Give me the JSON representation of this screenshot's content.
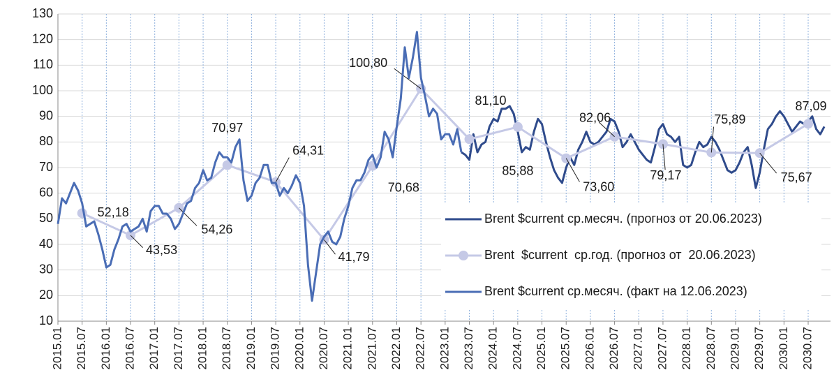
{
  "chart_data": {
    "type": "line",
    "categories": [
      "2015.01",
      null,
      null,
      null,
      null,
      null,
      "2015.07",
      null,
      null,
      null,
      null,
      null,
      "2016.01",
      null,
      null,
      null,
      null,
      null,
      "2016.07",
      null,
      null,
      null,
      null,
      null,
      "2017.01",
      null,
      null,
      null,
      null,
      null,
      "2017.07",
      null,
      null,
      null,
      null,
      null,
      "2018.01",
      null,
      null,
      null,
      null,
      null,
      "2018.07",
      null,
      null,
      null,
      null,
      null,
      "2019.01",
      null,
      null,
      null,
      null,
      null,
      "2019.07",
      null,
      null,
      null,
      null,
      null,
      "2020.01",
      null,
      null,
      null,
      null,
      null,
      "2020.07",
      null,
      null,
      null,
      null,
      null,
      "2021.01",
      null,
      null,
      null,
      null,
      null,
      "2021.07",
      null,
      null,
      null,
      null,
      null,
      "2022.01",
      null,
      null,
      null,
      null,
      null,
      "2022.07",
      null,
      null,
      null,
      null,
      null,
      "2023.01",
      null,
      null,
      null,
      null,
      null,
      "2023.07",
      null,
      null,
      null,
      null,
      null,
      "2024.01",
      null,
      null,
      null,
      null,
      null,
      "2024.07",
      null,
      null,
      null,
      null,
      null,
      "2025.01",
      null,
      null,
      null,
      null,
      null,
      "2025.07",
      null,
      null,
      null,
      null,
      null,
      "2026.01",
      null,
      null,
      null,
      null,
      null,
      "2026.07",
      null,
      null,
      null,
      null,
      null,
      "2027.01",
      null,
      null,
      null,
      null,
      null,
      "2027.07",
      null,
      null,
      null,
      null,
      null,
      "2028.01",
      null,
      null,
      null,
      null,
      null,
      "2028.07",
      null,
      null,
      null,
      null,
      null,
      "2029.01",
      null,
      null,
      null,
      null,
      null,
      "2029.07",
      null,
      null,
      null,
      null,
      null,
      "2030.01",
      null,
      null,
      null,
      null,
      null,
      "2030.07",
      null,
      null,
      null,
      null
    ],
    "series": [
      {
        "name": "Brent $current ср.месяч. (прогноз от 20.06.2023)",
        "color": "#2f4b8c",
        "style": "line",
        "values": [
          null,
          null,
          null,
          null,
          null,
          null,
          null,
          null,
          null,
          null,
          null,
          null,
          null,
          null,
          null,
          null,
          null,
          null,
          null,
          null,
          null,
          null,
          null,
          null,
          null,
          null,
          null,
          null,
          null,
          null,
          null,
          null,
          null,
          null,
          null,
          null,
          null,
          null,
          null,
          null,
          null,
          null,
          null,
          null,
          null,
          null,
          null,
          null,
          null,
          null,
          null,
          null,
          null,
          null,
          null,
          null,
          null,
          null,
          null,
          null,
          null,
          null,
          null,
          null,
          null,
          null,
          null,
          null,
          null,
          null,
          null,
          null,
          null,
          null,
          null,
          null,
          null,
          null,
          null,
          null,
          null,
          null,
          null,
          null,
          null,
          null,
          null,
          null,
          null,
          null,
          null,
          null,
          null,
          null,
          null,
          null,
          null,
          null,
          null,
          null,
          76,
          75,
          73,
          83,
          76,
          79,
          80,
          86,
          89,
          88,
          93,
          93,
          94,
          91,
          84,
          76,
          78,
          77,
          84,
          89,
          87,
          80,
          74,
          69,
          66,
          64,
          70,
          74,
          71,
          77,
          80,
          84,
          80,
          79,
          80,
          82,
          84,
          89,
          88,
          84,
          78,
          80,
          83,
          80,
          77,
          75,
          73,
          72,
          78,
          85,
          87,
          83,
          82,
          80,
          82,
          71,
          70,
          71,
          76,
          80,
          78,
          79,
          82,
          80,
          77,
          73,
          69,
          68,
          69,
          72,
          76,
          78,
          71,
          62,
          68,
          77,
          85,
          87,
          90,
          92,
          90,
          87,
          84,
          86,
          88,
          87,
          88,
          90,
          85,
          83,
          86
        ]
      },
      {
        "name": "Brent  $current  ср.год. (прогноз от  20.06.2023)",
        "color": "#c5c9e6",
        "style": "points",
        "values": [
          null,
          null,
          null,
          null,
          null,
          null,
          52.18,
          null,
          null,
          null,
          null,
          null,
          null,
          null,
          null,
          null,
          null,
          null,
          43.53,
          null,
          null,
          null,
          null,
          null,
          null,
          null,
          null,
          null,
          null,
          null,
          54.26,
          null,
          null,
          null,
          null,
          null,
          null,
          null,
          null,
          null,
          null,
          null,
          70.97,
          null,
          null,
          null,
          null,
          null,
          null,
          null,
          null,
          null,
          null,
          null,
          64.31,
          null,
          null,
          null,
          null,
          null,
          null,
          null,
          null,
          null,
          null,
          null,
          41.79,
          null,
          null,
          null,
          null,
          null,
          null,
          null,
          null,
          null,
          null,
          null,
          70.68,
          null,
          null,
          null,
          null,
          null,
          null,
          null,
          null,
          null,
          null,
          null,
          100.8,
          null,
          null,
          null,
          null,
          null,
          null,
          null,
          null,
          null,
          null,
          null,
          81.1,
          null,
          null,
          null,
          null,
          null,
          null,
          null,
          null,
          null,
          null,
          null,
          85.88,
          null,
          null,
          null,
          null,
          null,
          null,
          null,
          null,
          null,
          null,
          null,
          73.6,
          null,
          null,
          null,
          null,
          null,
          null,
          null,
          null,
          null,
          null,
          null,
          82.06,
          null,
          null,
          null,
          null,
          null,
          null,
          null,
          null,
          null,
          null,
          null,
          79.17,
          null,
          null,
          null,
          null,
          null,
          null,
          null,
          null,
          null,
          null,
          null,
          75.89,
          null,
          null,
          null,
          null,
          null,
          null,
          null,
          null,
          null,
          null,
          null,
          75.67,
          null,
          null,
          null,
          null,
          null,
          null,
          null,
          null,
          null,
          null,
          null,
          87.09,
          null,
          null,
          null,
          null
        ],
        "value_labels": [
          null,
          null,
          null,
          null,
          null,
          null,
          "52,18",
          null,
          null,
          null,
          null,
          null,
          null,
          null,
          null,
          null,
          null,
          null,
          "43,53",
          null,
          null,
          null,
          null,
          null,
          null,
          null,
          null,
          null,
          null,
          null,
          "54,26",
          null,
          null,
          null,
          null,
          null,
          null,
          null,
          null,
          null,
          null,
          null,
          "70,97",
          null,
          null,
          null,
          null,
          null,
          null,
          null,
          null,
          null,
          null,
          null,
          "64,31",
          null,
          null,
          null,
          null,
          null,
          null,
          null,
          null,
          null,
          null,
          null,
          "41,79",
          null,
          null,
          null,
          null,
          null,
          null,
          null,
          null,
          null,
          null,
          null,
          "70,68",
          null,
          null,
          null,
          null,
          null,
          null,
          null,
          null,
          null,
          null,
          null,
          "100,80",
          null,
          null,
          null,
          null,
          null,
          null,
          null,
          null,
          null,
          null,
          null,
          "81,10",
          null,
          null,
          null,
          null,
          null,
          null,
          null,
          null,
          null,
          null,
          null,
          "85,88",
          null,
          null,
          null,
          null,
          null,
          null,
          null,
          null,
          null,
          null,
          null,
          "73,60",
          null,
          null,
          null,
          null,
          null,
          null,
          null,
          null,
          null,
          null,
          null,
          "82,06",
          null,
          null,
          null,
          null,
          null,
          null,
          null,
          null,
          null,
          null,
          null,
          "79,17",
          null,
          null,
          null,
          null,
          null,
          null,
          null,
          null,
          null,
          null,
          null,
          "75,89",
          null,
          null,
          null,
          null,
          null,
          null,
          null,
          null,
          null,
          null,
          null,
          "75,67",
          null,
          null,
          null,
          null,
          null,
          null,
          null,
          null,
          null,
          null,
          null,
          "87,09",
          null,
          null,
          null,
          null
        ]
      },
      {
        "name": "Brent $current ср.месяч. (факт на 12.06.2023)",
        "color": "#4a6db5",
        "style": "line",
        "values": [
          48,
          58,
          56,
          60,
          64,
          61,
          56,
          47,
          48,
          49,
          44,
          38,
          31,
          32,
          38,
          42,
          47,
          48,
          45,
          46,
          47,
          50,
          45,
          53,
          55,
          55,
          52,
          52,
          50,
          46,
          48,
          52,
          56,
          57,
          62,
          64,
          69,
          65,
          66,
          72,
          76,
          74,
          74,
          72,
          78,
          81,
          65,
          57,
          59,
          64,
          66,
          71,
          71,
          64,
          64,
          59,
          62,
          60,
          63,
          67,
          64,
          55,
          32,
          18,
          29,
          40,
          43,
          45,
          41,
          40,
          43,
          50,
          55,
          62,
          65,
          65,
          68,
          73,
          75,
          70,
          74,
          84,
          81,
          74,
          86,
          97,
          117,
          105,
          113,
          123,
          105,
          98,
          90,
          93,
          91,
          81,
          83,
          83,
          79,
          85,
          76,
          null,
          null,
          null,
          null,
          null,
          null,
          null,
          null,
          null,
          null,
          null,
          null,
          null,
          null,
          null,
          null,
          null,
          null,
          null,
          null,
          null,
          null,
          null,
          null,
          null,
          null,
          null,
          null,
          null,
          null,
          null,
          null,
          null,
          null,
          null,
          null,
          null,
          null,
          null,
          null,
          null,
          null,
          null,
          null,
          null,
          null,
          null,
          null,
          null,
          null,
          null,
          null,
          null,
          null,
          null,
          null,
          null,
          null,
          null,
          null,
          null,
          null,
          null,
          null,
          null,
          null,
          null,
          null,
          null,
          null,
          null,
          null,
          null,
          null,
          null,
          null,
          null,
          null,
          null,
          null,
          null,
          null,
          null,
          null,
          null,
          null,
          null,
          null,
          null,
          null
        ]
      }
    ],
    "ylim": [
      10,
      130
    ],
    "yticks": [
      10,
      20,
      30,
      40,
      50,
      60,
      70,
      80,
      90,
      100,
      110,
      120,
      130
    ],
    "grid": true,
    "legend": "lower right"
  }
}
